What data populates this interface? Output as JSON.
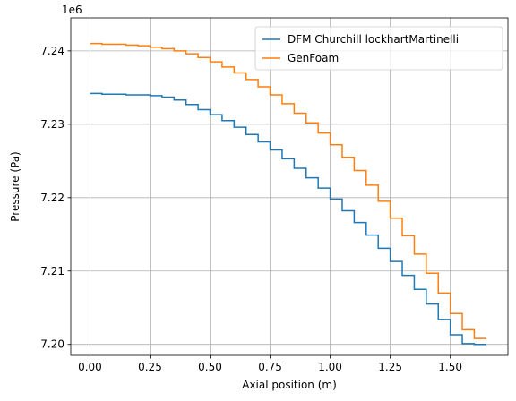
{
  "chart_data": {
    "type": "line",
    "title": "",
    "xlabel": "Axial position (m)",
    "ylabel": "Pressure (Pa)",
    "y_offset_label": "1e6",
    "xlim": [
      -0.08,
      1.74
    ],
    "ylim": [
      7.1985,
      7.2445
    ],
    "x_ticks": [
      0.0,
      0.25,
      0.5,
      0.75,
      1.0,
      1.25,
      1.5
    ],
    "x_tick_labels": [
      "0.00",
      "0.25",
      "0.50",
      "0.75",
      "1.00",
      "1.25",
      "1.50"
    ],
    "y_ticks": [
      7.2,
      7.21,
      7.22,
      7.23,
      7.24
    ],
    "y_tick_labels": [
      "7.20",
      "7.21",
      "7.22",
      "7.23",
      "7.24"
    ],
    "grid": true,
    "legend_position": "top-right",
    "step_style": "post",
    "series": [
      {
        "name": "DFM Churchill lockhartMartinelli",
        "color": "#1f77b4",
        "x": [
          0.0,
          0.05,
          0.1,
          0.15,
          0.2,
          0.25,
          0.3,
          0.35,
          0.4,
          0.45,
          0.5,
          0.55,
          0.6,
          0.65,
          0.7,
          0.75,
          0.8,
          0.85,
          0.9,
          0.95,
          1.0,
          1.05,
          1.1,
          1.15,
          1.2,
          1.25,
          1.3,
          1.35,
          1.4,
          1.45,
          1.5,
          1.55,
          1.6,
          1.65
        ],
        "y": [
          7.2342,
          7.2341,
          7.2341,
          7.234,
          7.234,
          7.2339,
          7.2337,
          7.2333,
          7.2327,
          7.232,
          7.2313,
          7.2305,
          7.2296,
          7.2286,
          7.2276,
          7.2265,
          7.2253,
          7.224,
          7.2227,
          7.2213,
          7.2198,
          7.2182,
          7.2166,
          7.2149,
          7.2131,
          7.2113,
          7.2094,
          7.2075,
          7.2055,
          7.2034,
          7.2013,
          7.2001,
          7.2,
          7.2
        ]
      },
      {
        "name": "GenFoam",
        "color": "#ff7f0e",
        "x": [
          0.0,
          0.05,
          0.1,
          0.15,
          0.2,
          0.25,
          0.3,
          0.35,
          0.4,
          0.45,
          0.5,
          0.55,
          0.6,
          0.65,
          0.7,
          0.75,
          0.8,
          0.85,
          0.9,
          0.95,
          1.0,
          1.05,
          1.1,
          1.15,
          1.2,
          1.25,
          1.3,
          1.35,
          1.4,
          1.45,
          1.5,
          1.55,
          1.6,
          1.65
        ],
        "y": [
          7.241,
          7.2409,
          7.2409,
          7.2408,
          7.2407,
          7.2405,
          7.2403,
          7.24,
          7.2396,
          7.2391,
          7.2385,
          7.2378,
          7.237,
          7.2361,
          7.2351,
          7.234,
          7.2328,
          7.2315,
          7.2302,
          7.2288,
          7.2272,
          7.2255,
          7.2237,
          7.2217,
          7.2195,
          7.2172,
          7.2148,
          7.2123,
          7.2097,
          7.207,
          7.2042,
          7.202,
          7.2008,
          7.2008
        ]
      }
    ]
  }
}
